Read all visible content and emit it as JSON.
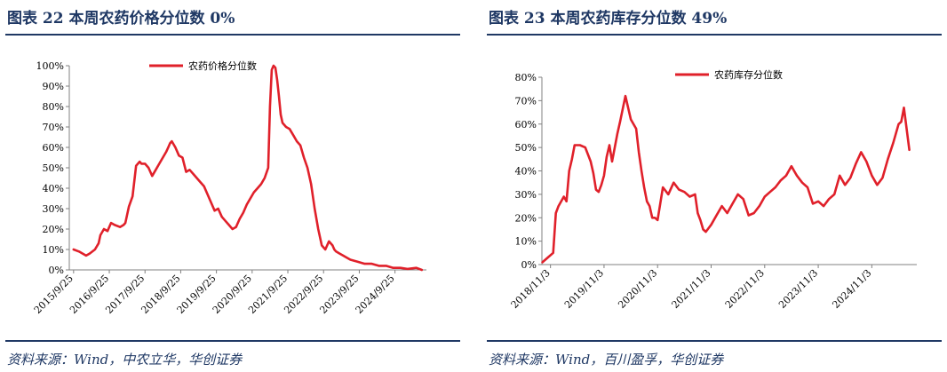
{
  "charts": [
    {
      "title": "图表 22 本周农药价格分位数 0%",
      "source": "资料来源：Wind，中农立华，华创证券"
    },
    {
      "title": "图表 23 本周农药库存分位数 49%",
      "source": "资料来源：Wind，百川盈孚，华创证券"
    }
  ],
  "chart_data": [
    {
      "type": "line",
      "title": "",
      "xlabel": "",
      "ylabel": "",
      "x_ticks": [
        "2015/9/25",
        "2016/9/25",
        "2017/9/25",
        "2018/9/25",
        "2019/9/25",
        "2020/9/25",
        "2021/9/25",
        "2022/9/25",
        "2023/9/25",
        "2024/9/25"
      ],
      "y_ticks": [
        "0%",
        "10%",
        "20%",
        "30%",
        "40%",
        "50%",
        "60%",
        "70%",
        "80%",
        "90%",
        "100%"
      ],
      "ylim": [
        0,
        100
      ],
      "xlim": [
        2015.73,
        2025.73
      ],
      "grid": false,
      "legend_position": "top-center",
      "series": [
        {
          "name": "农药价格分位数",
          "color": "#e0202a",
          "x": [
            2015.85,
            2016.0,
            2016.2,
            2016.3,
            2016.45,
            2016.55,
            2016.6,
            2016.7,
            2016.8,
            2016.9,
            2017.0,
            2017.15,
            2017.25,
            2017.3,
            2017.35,
            2017.4,
            2017.5,
            2017.6,
            2017.7,
            2017.75,
            2017.85,
            2017.95,
            2018.05,
            2018.15,
            2018.25,
            2018.35,
            2018.45,
            2018.5,
            2018.55,
            2018.6,
            2018.7,
            2018.8,
            2018.9,
            2019.0,
            2019.1,
            2019.2,
            2019.3,
            2019.4,
            2019.5,
            2019.6,
            2019.7,
            2019.8,
            2019.9,
            2020.0,
            2020.1,
            2020.2,
            2020.3,
            2020.4,
            2020.5,
            2020.6,
            2020.65,
            2020.7,
            2020.8,
            2020.9,
            2021.0,
            2021.1,
            2021.2,
            2021.3,
            2021.35,
            2021.4,
            2021.45,
            2021.5,
            2021.55,
            2021.6,
            2021.65,
            2021.7,
            2021.8,
            2021.9,
            2022.0,
            2022.1,
            2022.2,
            2022.3,
            2022.4,
            2022.5,
            2022.6,
            2022.7,
            2022.8,
            2022.9,
            2023.0,
            2023.1,
            2023.15,
            2023.2,
            2023.3,
            2023.4,
            2023.5,
            2023.6,
            2023.8,
            2024.0,
            2024.2,
            2024.4,
            2024.6,
            2024.8,
            2025.0,
            2025.2,
            2025.45,
            2025.6
          ],
          "values": [
            10,
            9,
            7,
            8,
            10,
            13,
            17,
            20,
            19,
            23,
            22,
            21,
            22,
            23,
            27,
            31,
            36,
            51,
            53,
            52,
            52,
            50,
            46,
            49,
            52,
            55,
            58,
            60,
            62,
            63,
            60,
            56,
            55,
            48,
            49,
            47,
            45,
            43,
            41,
            37,
            33,
            29,
            30,
            26,
            24,
            22,
            20,
            21,
            25,
            28,
            30,
            32,
            35,
            38,
            40,
            42,
            45,
            50,
            80,
            98,
            100,
            99,
            93,
            85,
            76,
            72,
            70,
            69,
            66,
            63,
            61,
            55,
            50,
            42,
            30,
            20,
            12,
            10,
            14,
            12,
            10,
            9,
            8,
            7,
            6,
            5,
            4,
            3,
            3,
            2,
            2,
            1,
            1,
            0.5,
            1,
            0
          ]
        }
      ]
    },
    {
      "type": "line",
      "title": "",
      "xlabel": "",
      "ylabel": "",
      "x_ticks": [
        "2018/11/3",
        "2019/11/3",
        "2020/11/3",
        "2021/11/3",
        "2022/11/3",
        "2023/11/3",
        "2024/11/3"
      ],
      "y_ticks": [
        "0%",
        "10%",
        "20%",
        "30%",
        "40%",
        "50%",
        "60%",
        "70%",
        "80%"
      ],
      "ylim": [
        0,
        80
      ],
      "xlim": [
        2018.84,
        2025.84
      ],
      "grid": false,
      "legend_position": "top-center",
      "series": [
        {
          "name": "农药库存分位数",
          "color": "#e0202a",
          "x": [
            2018.85,
            2018.95,
            2019.05,
            2019.1,
            2019.15,
            2019.25,
            2019.3,
            2019.35,
            2019.4,
            2019.45,
            2019.55,
            2019.65,
            2019.75,
            2019.8,
            2019.85,
            2019.9,
            2019.95,
            2020.0,
            2020.05,
            2020.1,
            2020.15,
            2020.2,
            2020.25,
            2020.3,
            2020.4,
            2020.5,
            2020.6,
            2020.65,
            2020.7,
            2020.75,
            2020.8,
            2020.85,
            2020.9,
            2020.95,
            2021.0,
            2021.1,
            2021.2,
            2021.3,
            2021.4,
            2021.5,
            2021.6,
            2021.7,
            2021.75,
            2021.8,
            2021.85,
            2021.9,
            2022.0,
            2022.1,
            2022.2,
            2022.3,
            2022.4,
            2022.5,
            2022.6,
            2022.7,
            2022.8,
            2022.9,
            2023.0,
            2023.1,
            2023.2,
            2023.3,
            2023.4,
            2023.5,
            2023.55,
            2023.6,
            2023.7,
            2023.8,
            2023.9,
            2024.0,
            2024.1,
            2024.2,
            2024.3,
            2024.4,
            2024.5,
            2024.6,
            2024.7,
            2024.8,
            2024.9,
            2025.0,
            2025.1,
            2025.2,
            2025.3,
            2025.4,
            2025.5,
            2025.55,
            2025.6,
            2025.7
          ],
          "values": [
            1,
            3,
            5,
            22,
            25,
            29,
            27,
            40,
            45,
            51,
            51,
            50,
            44,
            39,
            32,
            31,
            34,
            38,
            46,
            51,
            44,
            50,
            56,
            61,
            72,
            62,
            58,
            48,
            40,
            33,
            27,
            25,
            20,
            20,
            19,
            33,
            30,
            35,
            32,
            31,
            29,
            30,
            22,
            19,
            15,
            14,
            17,
            21,
            25,
            22,
            26,
            30,
            28,
            21,
            22,
            25,
            29,
            31,
            33,
            36,
            38,
            42,
            40,
            38,
            35,
            33,
            26,
            27,
            25,
            28,
            30,
            38,
            34,
            37,
            43,
            48,
            44,
            38,
            34,
            37,
            45,
            52,
            60,
            61,
            67,
            49
          ]
        }
      ]
    }
  ]
}
